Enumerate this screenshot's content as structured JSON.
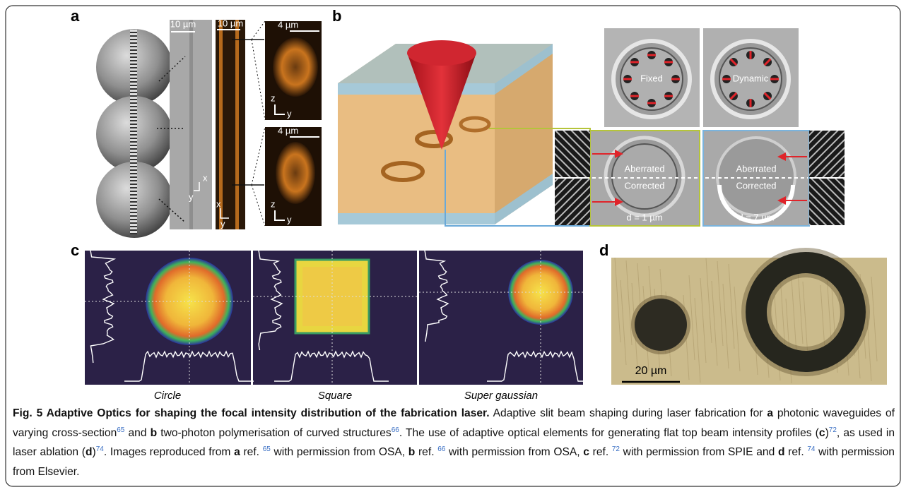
{
  "panels": {
    "a": {
      "label": "a",
      "scale_gray": "10 µm",
      "scale_orange": "10 µm",
      "scale_inset_top": "4 µm",
      "scale_inset_bottom": "4 µm",
      "axes_gray": [
        "x",
        "y"
      ],
      "axes_orange": [
        "x",
        "y"
      ],
      "axes_inset_top": [
        "z",
        "y"
      ],
      "axes_inset_bottom": [
        "z",
        "y"
      ]
    },
    "b": {
      "label": "b",
      "fixed": "Fixed",
      "dynamic": "Dynamic",
      "aberrated": [
        "Aberrated",
        "Aberrated"
      ],
      "corrected": [
        "Corrected",
        "Corrected"
      ],
      "spacing": [
        "d = 1 µm",
        "d = 7 µm"
      ]
    },
    "c": {
      "label": "c",
      "captions": [
        "Circle",
        "Square",
        "Super gaussian"
      ]
    },
    "d": {
      "label": "d",
      "scale": "20 µm"
    }
  },
  "caption": {
    "segments": [
      {
        "text": "Fig. 5 Adaptive Optics for shaping the focal intensity distribution of the fabrication laser.",
        "format": "bold"
      },
      {
        "text": " Adaptive slit beam shaping during laser fabrication for ",
        "format": "plain"
      },
      {
        "text": "a",
        "format": "bold"
      },
      {
        "text": " photonic waveguides of varying cross-section",
        "format": "plain"
      },
      {
        "text": "65",
        "format": "sup"
      },
      {
        "text": " and ",
        "format": "plain"
      },
      {
        "text": "b",
        "format": "bold"
      },
      {
        "text": " two-photon polymerisation of curved structures",
        "format": "plain"
      },
      {
        "text": "66",
        "format": "sup"
      },
      {
        "text": ". The use of adaptive optical elements for generating flat top beam intensity profiles (",
        "format": "plain"
      },
      {
        "text": "c",
        "format": "bold"
      },
      {
        "text": ")",
        "format": "plain"
      },
      {
        "text": "72",
        "format": "sup"
      },
      {
        "text": ", as used in laser ablation (",
        "format": "plain"
      },
      {
        "text": "d",
        "format": "bold"
      },
      {
        "text": ")",
        "format": "plain"
      },
      {
        "text": "74",
        "format": "sup"
      },
      {
        "text": ". Images reproduced from ",
        "format": "plain"
      },
      {
        "text": "a",
        "format": "bold"
      },
      {
        "text": " ref. ",
        "format": "plain"
      },
      {
        "text": "65",
        "format": "sup"
      },
      {
        "text": " with permission from OSA, ",
        "format": "plain"
      },
      {
        "text": "b",
        "format": "bold"
      },
      {
        "text": " ref. ",
        "format": "plain"
      },
      {
        "text": "66",
        "format": "sup"
      },
      {
        "text": " with permission from OSA, ",
        "format": "plain"
      },
      {
        "text": "c",
        "format": "bold"
      },
      {
        "text": " ref. ",
        "format": "plain"
      },
      {
        "text": "72",
        "format": "sup"
      },
      {
        "text": " with permission from SPIE and ",
        "format": "plain"
      },
      {
        "text": "d",
        "format": "bold"
      },
      {
        "text": " ref. ",
        "format": "plain"
      },
      {
        "text": "74",
        "format": "sup"
      },
      {
        "text": " with permission from Elsevier.",
        "format": "plain"
      }
    ]
  }
}
